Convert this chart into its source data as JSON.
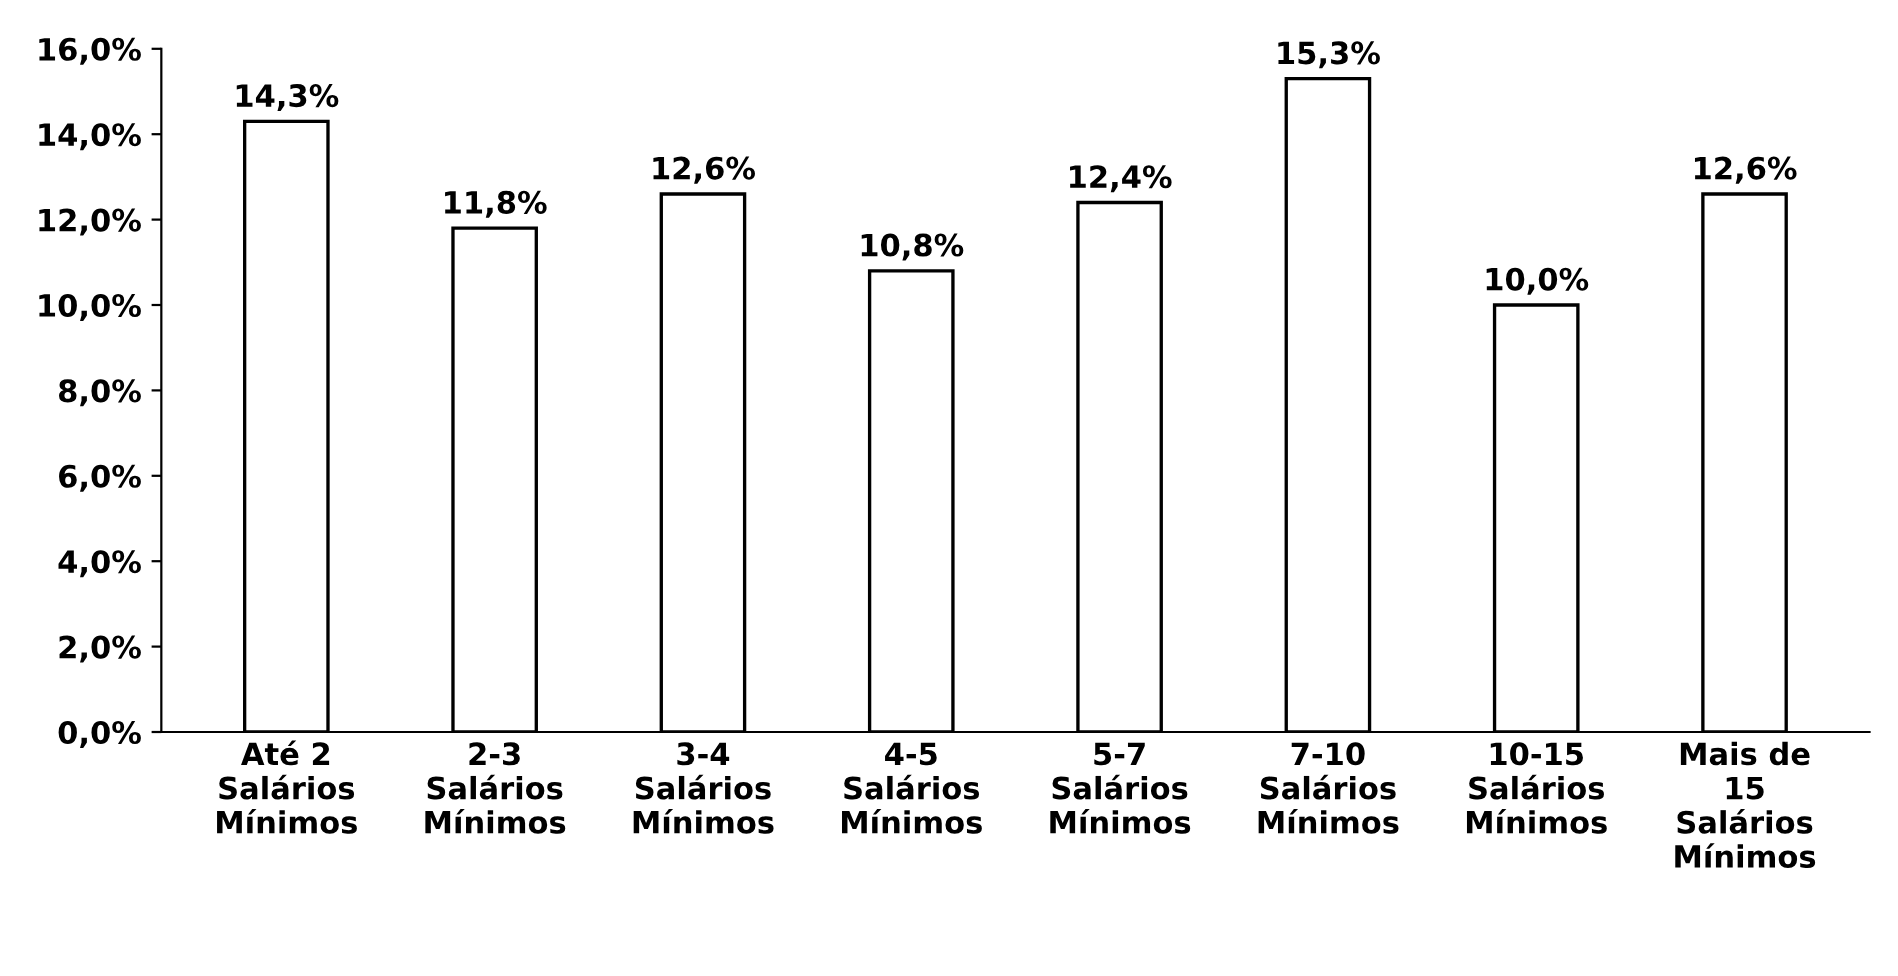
{
  "chart_data": {
    "type": "bar",
    "categories": [
      "Até 2\nSalários\nMínimos",
      "2-3\nSalários\nMínimos",
      "3-4\nSalários\nMínimos",
      "4-5\nSalários\nMínimos",
      "5-7\nSalários\nMínimos",
      "7-10\nSalários\nMínimos",
      "10-15\nSalários\nMínimos",
      "Mais de\n15\nSalários\nMínimos"
    ],
    "values": [
      14.3,
      11.8,
      12.6,
      10.8,
      12.4,
      15.3,
      10.0,
      12.6
    ],
    "value_labels": [
      "14,3%",
      "11,8%",
      "12,6%",
      "10,8%",
      "12,4%",
      "15,3%",
      "10,0%",
      "12,6%"
    ],
    "color": "#ffffff",
    "ylim": [
      0,
      16
    ],
    "yticks": [
      {
        "value": 0,
        "label": "0,0%"
      },
      {
        "value": 2,
        "label": "2,0%"
      },
      {
        "value": 4,
        "label": "4,0%"
      },
      {
        "value": 6,
        "label": "6,0%"
      },
      {
        "value": 8,
        "label": "8,0%"
      },
      {
        "value": 10,
        "label": "10,0%"
      },
      {
        "value": 12,
        "label": "12,0%"
      },
      {
        "value": 14,
        "label": "14,0%"
      },
      {
        "value": 16,
        "label": "16,0%"
      }
    ],
    "grid": false,
    "legend": false
  }
}
